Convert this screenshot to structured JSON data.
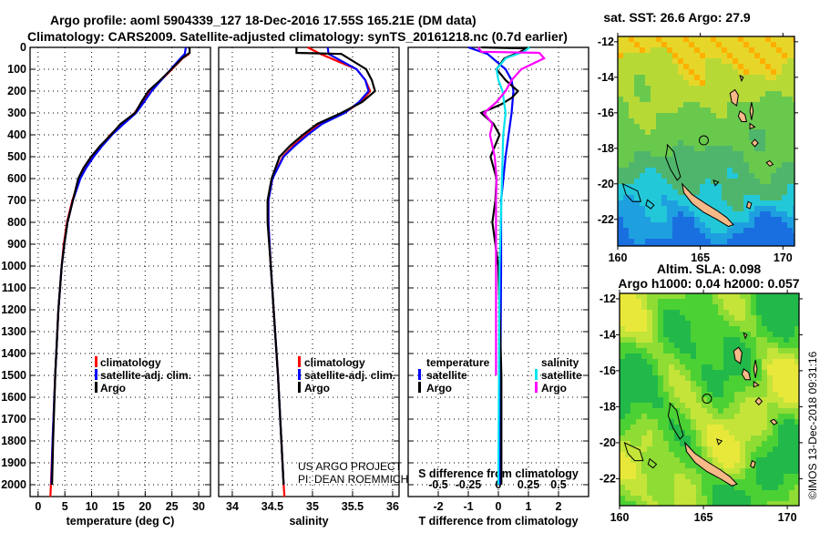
{
  "title_line1": "Argo profile: aoml 5904339_127 18-Dec-2016 17.55S 165.21E (DM data)",
  "title_line2": "Climatology: CARS2009. Satellite-adjusted climatology: synTS_20161218.nc (0.7d earlier)",
  "credit_line1": "US ARGO PROJECT",
  "credit_line2": "PI: DEAN ROEMMICH",
  "timestamp": "©IMOS 13-Dec-2018 09:31:16",
  "colors": {
    "climatology": "#ff0000",
    "satellite": "#0000ff",
    "argo": "#000000",
    "sal_satellite": "#00e5ee",
    "sal_argo": "#ff00ff"
  },
  "chart_data": [
    {
      "type": "line",
      "id": "temperature",
      "xlabel": "temperature (deg C)",
      "ylabel": "",
      "xlim": [
        -1.5,
        32.2
      ],
      "ylim": [
        2055,
        0
      ],
      "xticks": [
        0,
        5,
        10,
        15,
        20,
        25,
        30
      ],
      "yticks": [
        0,
        100,
        200,
        300,
        400,
        500,
        600,
        700,
        800,
        900,
        1000,
        1100,
        1200,
        1300,
        1400,
        1500,
        1600,
        1700,
        1800,
        1900,
        2000
      ],
      "grid": true,
      "legend": [
        "climatology",
        "satellite-adj. clim.",
        "Argo"
      ],
      "series": [
        {
          "name": "climatology",
          "depth": [
            30,
            50,
            100,
            150,
            200,
            250,
            300,
            350,
            400,
            450,
            500,
            550,
            600,
            700,
            800,
            900,
            1000,
            1200,
            1500,
            1800,
            2000,
            2055
          ],
          "values": [
            28.2,
            27.0,
            25.0,
            23.0,
            21.0,
            19.5,
            18.0,
            15.8,
            13.5,
            11.8,
            10.2,
            8.8,
            7.7,
            6.4,
            5.4,
            4.8,
            4.4,
            3.8,
            3.2,
            2.7,
            2.4,
            2.3
          ]
        },
        {
          "name": "satellite-adj. clim.",
          "depth": [
            0,
            30,
            50,
            100,
            150,
            200,
            250,
            300,
            350,
            400,
            450,
            500,
            550,
            600,
            700,
            800,
            900,
            1000,
            1200,
            1500,
            1800,
            2000
          ],
          "values": [
            27.6,
            27.4,
            26.6,
            24.8,
            23.0,
            21.2,
            19.8,
            18.3,
            16.0,
            13.8,
            12.0,
            10.4,
            9.0,
            7.9,
            6.5,
            5.5,
            4.9,
            4.4,
            3.8,
            3.2,
            2.7,
            2.5
          ]
        },
        {
          "name": "Argo",
          "depth": [
            0,
            5,
            25,
            30,
            50,
            100,
            150,
            200,
            250,
            300,
            350,
            400,
            450,
            500,
            550,
            600,
            700,
            800,
            900,
            1000,
            1200,
            1500,
            1800,
            2000
          ],
          "values": [
            28.1,
            28.3,
            28.3,
            28.0,
            26.9,
            24.9,
            22.8,
            20.6,
            19.3,
            18.1,
            15.4,
            13.6,
            11.6,
            9.9,
            8.5,
            7.5,
            6.5,
            5.5,
            4.9,
            4.4,
            3.8,
            3.2,
            2.8,
            2.6
          ]
        }
      ]
    },
    {
      "type": "line",
      "id": "salinity",
      "xlabel": "salinity",
      "ylabel": "",
      "xlim": [
        33.83,
        36.08
      ],
      "ylim": [
        2055,
        0
      ],
      "xticks": [
        34,
        34.5,
        35,
        35.5,
        36
      ],
      "grid": true,
      "legend": [
        "climatology",
        "satellite-adj. clim.",
        "Argo"
      ],
      "series": [
        {
          "name": "climatology",
          "depth": [
            0,
            30,
            100,
            150,
            200,
            250,
            300,
            350,
            400,
            450,
            500,
            600,
            700,
            800,
            1000,
            1500,
            2000,
            2055
          ],
          "values": [
            34.94,
            35.1,
            35.55,
            35.66,
            35.72,
            35.6,
            35.4,
            35.1,
            34.92,
            34.76,
            34.63,
            34.5,
            34.45,
            34.45,
            34.48,
            34.57,
            34.64,
            34.65
          ]
        },
        {
          "name": "satellite-adj. clim.",
          "depth": [
            0,
            30,
            100,
            150,
            200,
            250,
            300,
            350,
            400,
            450,
            500,
            600,
            700,
            800,
            1000,
            1500,
            2000
          ],
          "values": [
            35.19,
            35.2,
            35.55,
            35.66,
            35.7,
            35.58,
            35.4,
            35.12,
            34.94,
            34.78,
            34.64,
            34.5,
            34.45,
            34.45,
            34.48,
            34.57,
            34.64
          ]
        },
        {
          "name": "Argo",
          "depth": [
            0,
            25,
            30,
            100,
            150,
            200,
            250,
            300,
            350,
            400,
            450,
            500,
            600,
            700,
            800,
            1000,
            1500,
            2000
          ],
          "values": [
            34.8,
            34.8,
            35.36,
            35.67,
            35.74,
            35.78,
            35.62,
            35.36,
            35.06,
            34.88,
            34.72,
            34.59,
            34.49,
            34.44,
            34.44,
            34.48,
            34.57,
            34.64
          ]
        }
      ]
    },
    {
      "type": "line",
      "id": "differences",
      "xlabel": "T difference from climatology",
      "x2label": "S difference from climatology",
      "xlim": [
        -3,
        3
      ],
      "x2lim": [
        -0.75,
        0.75
      ],
      "ylim": [
        2055,
        0
      ],
      "xticks": [
        -2,
        -1,
        0,
        1,
        2
      ],
      "xticklabels": [
        "-2",
        "-1",
        "0",
        "1",
        "2"
      ],
      "x2ticks": [
        -0.5,
        -0.25,
        0,
        0.25,
        0.5
      ],
      "x2ticklabels": [
        "-0.5",
        "-0.25",
        "0",
        "0.25",
        "0.5"
      ],
      "grid": true,
      "legend": {
        "temperature_title": "temperature",
        "salinity_title": "salinity",
        "satellite": "satellite",
        "argo": "Argo"
      },
      "series": [
        {
          "name": "T satellite",
          "axis": "T",
          "depth": [
            0,
            30,
            100,
            150,
            200,
            300,
            400,
            500,
            700,
            1000,
            2000
          ],
          "values": [
            -1.0,
            -0.36,
            0.24,
            0.44,
            0.5,
            0.44,
            0.34,
            0.24,
            0.09,
            0.09,
            0.05
          ]
        },
        {
          "name": "T Argo",
          "axis": "T",
          "depth": [
            0,
            5,
            25,
            50,
            100,
            150,
            200,
            230,
            260,
            300,
            350,
            400,
            500,
            600,
            700,
            800,
            1000,
            1500,
            2000
          ],
          "values": [
            -0.56,
            0.95,
            0.65,
            0.2,
            -0.06,
            0.24,
            0.65,
            0.45,
            0.1,
            -0.57,
            -0.16,
            0.04,
            -0.26,
            -0.06,
            -0.1,
            -0.2,
            0.0,
            0.1,
            0.1
          ]
        },
        {
          "name": "S satellite",
          "axis": "S",
          "depth": [
            0,
            20,
            50,
            100,
            150,
            200,
            300,
            400,
            600,
            1000,
            2000
          ],
          "values": [
            0.26,
            0.21,
            0.06,
            -0.015,
            0.0,
            0.035,
            0.06,
            0.04,
            0.03,
            0.01,
            0.0
          ]
        },
        {
          "name": "S Argo",
          "axis": "S",
          "depth": [
            0,
            20,
            25,
            50,
            100,
            150,
            200,
            250,
            300,
            350,
            400,
            500,
            600,
            700,
            1000,
            1500
          ],
          "values": [
            -0.17,
            -0.14,
            0.34,
            0.38,
            0.19,
            0.11,
            0.06,
            -0.015,
            -0.12,
            -0.05,
            -0.07,
            -0.03,
            -0.015,
            -0.02,
            -0.02,
            -0.02
          ]
        }
      ]
    },
    {
      "type": "heatmap",
      "id": "sst_map",
      "title": "sat. SST: 26.6 Argo: 27.9",
      "xlim": [
        160,
        170.7
      ],
      "ylim": [
        -11.7,
        -23.5
      ],
      "xticks": [
        160,
        165,
        170
      ],
      "yticks": [
        -12,
        -14,
        -16,
        -18,
        -20,
        -22
      ],
      "float_position": {
        "lon": 165.21,
        "lat": -17.55
      }
    },
    {
      "type": "heatmap",
      "id": "sla_map",
      "title": "Altim. SLA: 0.098",
      "subtitle": "Argo h1000: 0.04 h2000: 0.057",
      "xlim": [
        160,
        170.7
      ],
      "ylim": [
        -11.7,
        -23.5
      ],
      "xticks": [
        160,
        165,
        170
      ],
      "yticks": [
        -12,
        -14,
        -16,
        -18,
        -20,
        -22
      ],
      "float_position": {
        "lon": 165.21,
        "lat": -17.55
      }
    }
  ],
  "islands": [
    [
      [
        163.9,
        -20.0
      ],
      [
        164.5,
        -20.6
      ],
      [
        165.3,
        -21.1
      ],
      [
        166.0,
        -21.5
      ],
      [
        166.6,
        -21.9
      ],
      [
        167.0,
        -22.3
      ],
      [
        166.7,
        -22.4
      ],
      [
        166.0,
        -22.0
      ],
      [
        165.2,
        -21.6
      ],
      [
        164.5,
        -21.1
      ],
      [
        164.0,
        -20.5
      ]
    ],
    [
      [
        167.1,
        -14.7
      ],
      [
        167.3,
        -15.0
      ],
      [
        167.2,
        -15.6
      ],
      [
        166.9,
        -15.4
      ],
      [
        166.8,
        -14.9
      ]
    ],
    [
      [
        167.4,
        -15.9
      ],
      [
        167.7,
        -16.1
      ],
      [
        167.8,
        -16.5
      ],
      [
        167.5,
        -16.5
      ],
      [
        167.3,
        -16.2
      ]
    ],
    [
      [
        168.1,
        -15.4
      ],
      [
        168.2,
        -15.9
      ],
      [
        168.1,
        -16.4
      ],
      [
        168.0,
        -15.9
      ]
    ],
    [
      [
        168.3,
        -17.5
      ],
      [
        168.5,
        -17.7
      ],
      [
        168.3,
        -17.9
      ],
      [
        168.1,
        -17.7
      ]
    ],
    [
      [
        169.2,
        -18.7
      ],
      [
        169.4,
        -18.9
      ],
      [
        169.2,
        -19.0
      ],
      [
        169.0,
        -18.8
      ]
    ],
    [
      [
        167.9,
        -21.0
      ],
      [
        168.1,
        -21.1
      ],
      [
        168.0,
        -21.4
      ],
      [
        167.8,
        -21.3
      ]
    ],
    [
      [
        167.4,
        -13.9
      ],
      [
        167.6,
        -14.0
      ],
      [
        167.5,
        -14.2
      ]
    ],
    [
      [
        168.0,
        -16.6
      ],
      [
        168.3,
        -16.8
      ],
      [
        168.0,
        -16.9
      ]
    ]
  ],
  "reef_outlines": [
    [
      [
        163.0,
        -17.8
      ],
      [
        163.4,
        -18.2
      ],
      [
        163.6,
        -19.0
      ],
      [
        163.8,
        -19.6
      ],
      [
        163.6,
        -19.8
      ],
      [
        163.2,
        -19.2
      ],
      [
        162.9,
        -18.5
      ],
      [
        163.0,
        -18.0
      ]
    ],
    [
      [
        160.3,
        -20.0
      ],
      [
        161.2,
        -20.4
      ],
      [
        161.4,
        -21.0
      ],
      [
        160.9,
        -21.0
      ],
      [
        160.5,
        -20.6
      ]
    ],
    [
      [
        161.8,
        -20.9
      ],
      [
        162.2,
        -21.2
      ],
      [
        162.0,
        -21.4
      ],
      [
        161.7,
        -21.2
      ]
    ],
    [
      [
        165.8,
        -19.8
      ],
      [
        166.1,
        -19.9
      ],
      [
        165.9,
        -20.1
      ]
    ]
  ]
}
